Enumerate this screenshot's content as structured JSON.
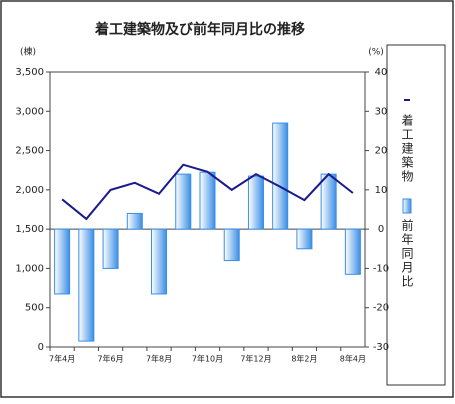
{
  "chart_data": {
    "type": "bar-line",
    "title": "着工建築物及び前年同月比の推移",
    "y_unit": "(棟)",
    "y2_unit": "(%)",
    "categories": [
      "7年4月",
      null,
      "7年6月",
      null,
      "7年8月",
      null,
      "7年10月",
      null,
      "7年12月",
      null,
      "8年2月",
      null,
      "8年4月"
    ],
    "series": [
      {
        "name": "前年同月比",
        "type": "bar",
        "axis": "y2",
        "color": "#3a8ee6",
        "values": [
          -16.5,
          -28.5,
          -10,
          4,
          -16.5,
          14,
          14.5,
          -8,
          13.5,
          27,
          -5,
          14,
          -11.5
        ]
      },
      {
        "name": "着工建築物",
        "type": "line",
        "axis": "y",
        "color": "#1a1a8c",
        "values": [
          1880,
          1630,
          2000,
          2090,
          1950,
          2320,
          2230,
          2000,
          2200,
          2040,
          1870,
          2200,
          1960
        ]
      }
    ],
    "ylim": [
      0,
      3500
    ],
    "yticks": [
      0,
      500,
      {
        "value": 1000,
        "label": "1,000"
      },
      {
        "value": 1500,
        "label": "1,500"
      },
      {
        "value": 2000,
        "label": "2,000"
      },
      {
        "value": 2500,
        "label": "2,500"
      },
      {
        "value": 3000,
        "label": "3,000"
      },
      {
        "value": 3500,
        "label": "3,500"
      }
    ],
    "y2lim": [
      -30,
      40
    ],
    "y2ticks": [
      -30,
      -20,
      -10,
      0,
      10,
      20,
      30,
      40
    ],
    "grid": false,
    "legend": "right"
  }
}
